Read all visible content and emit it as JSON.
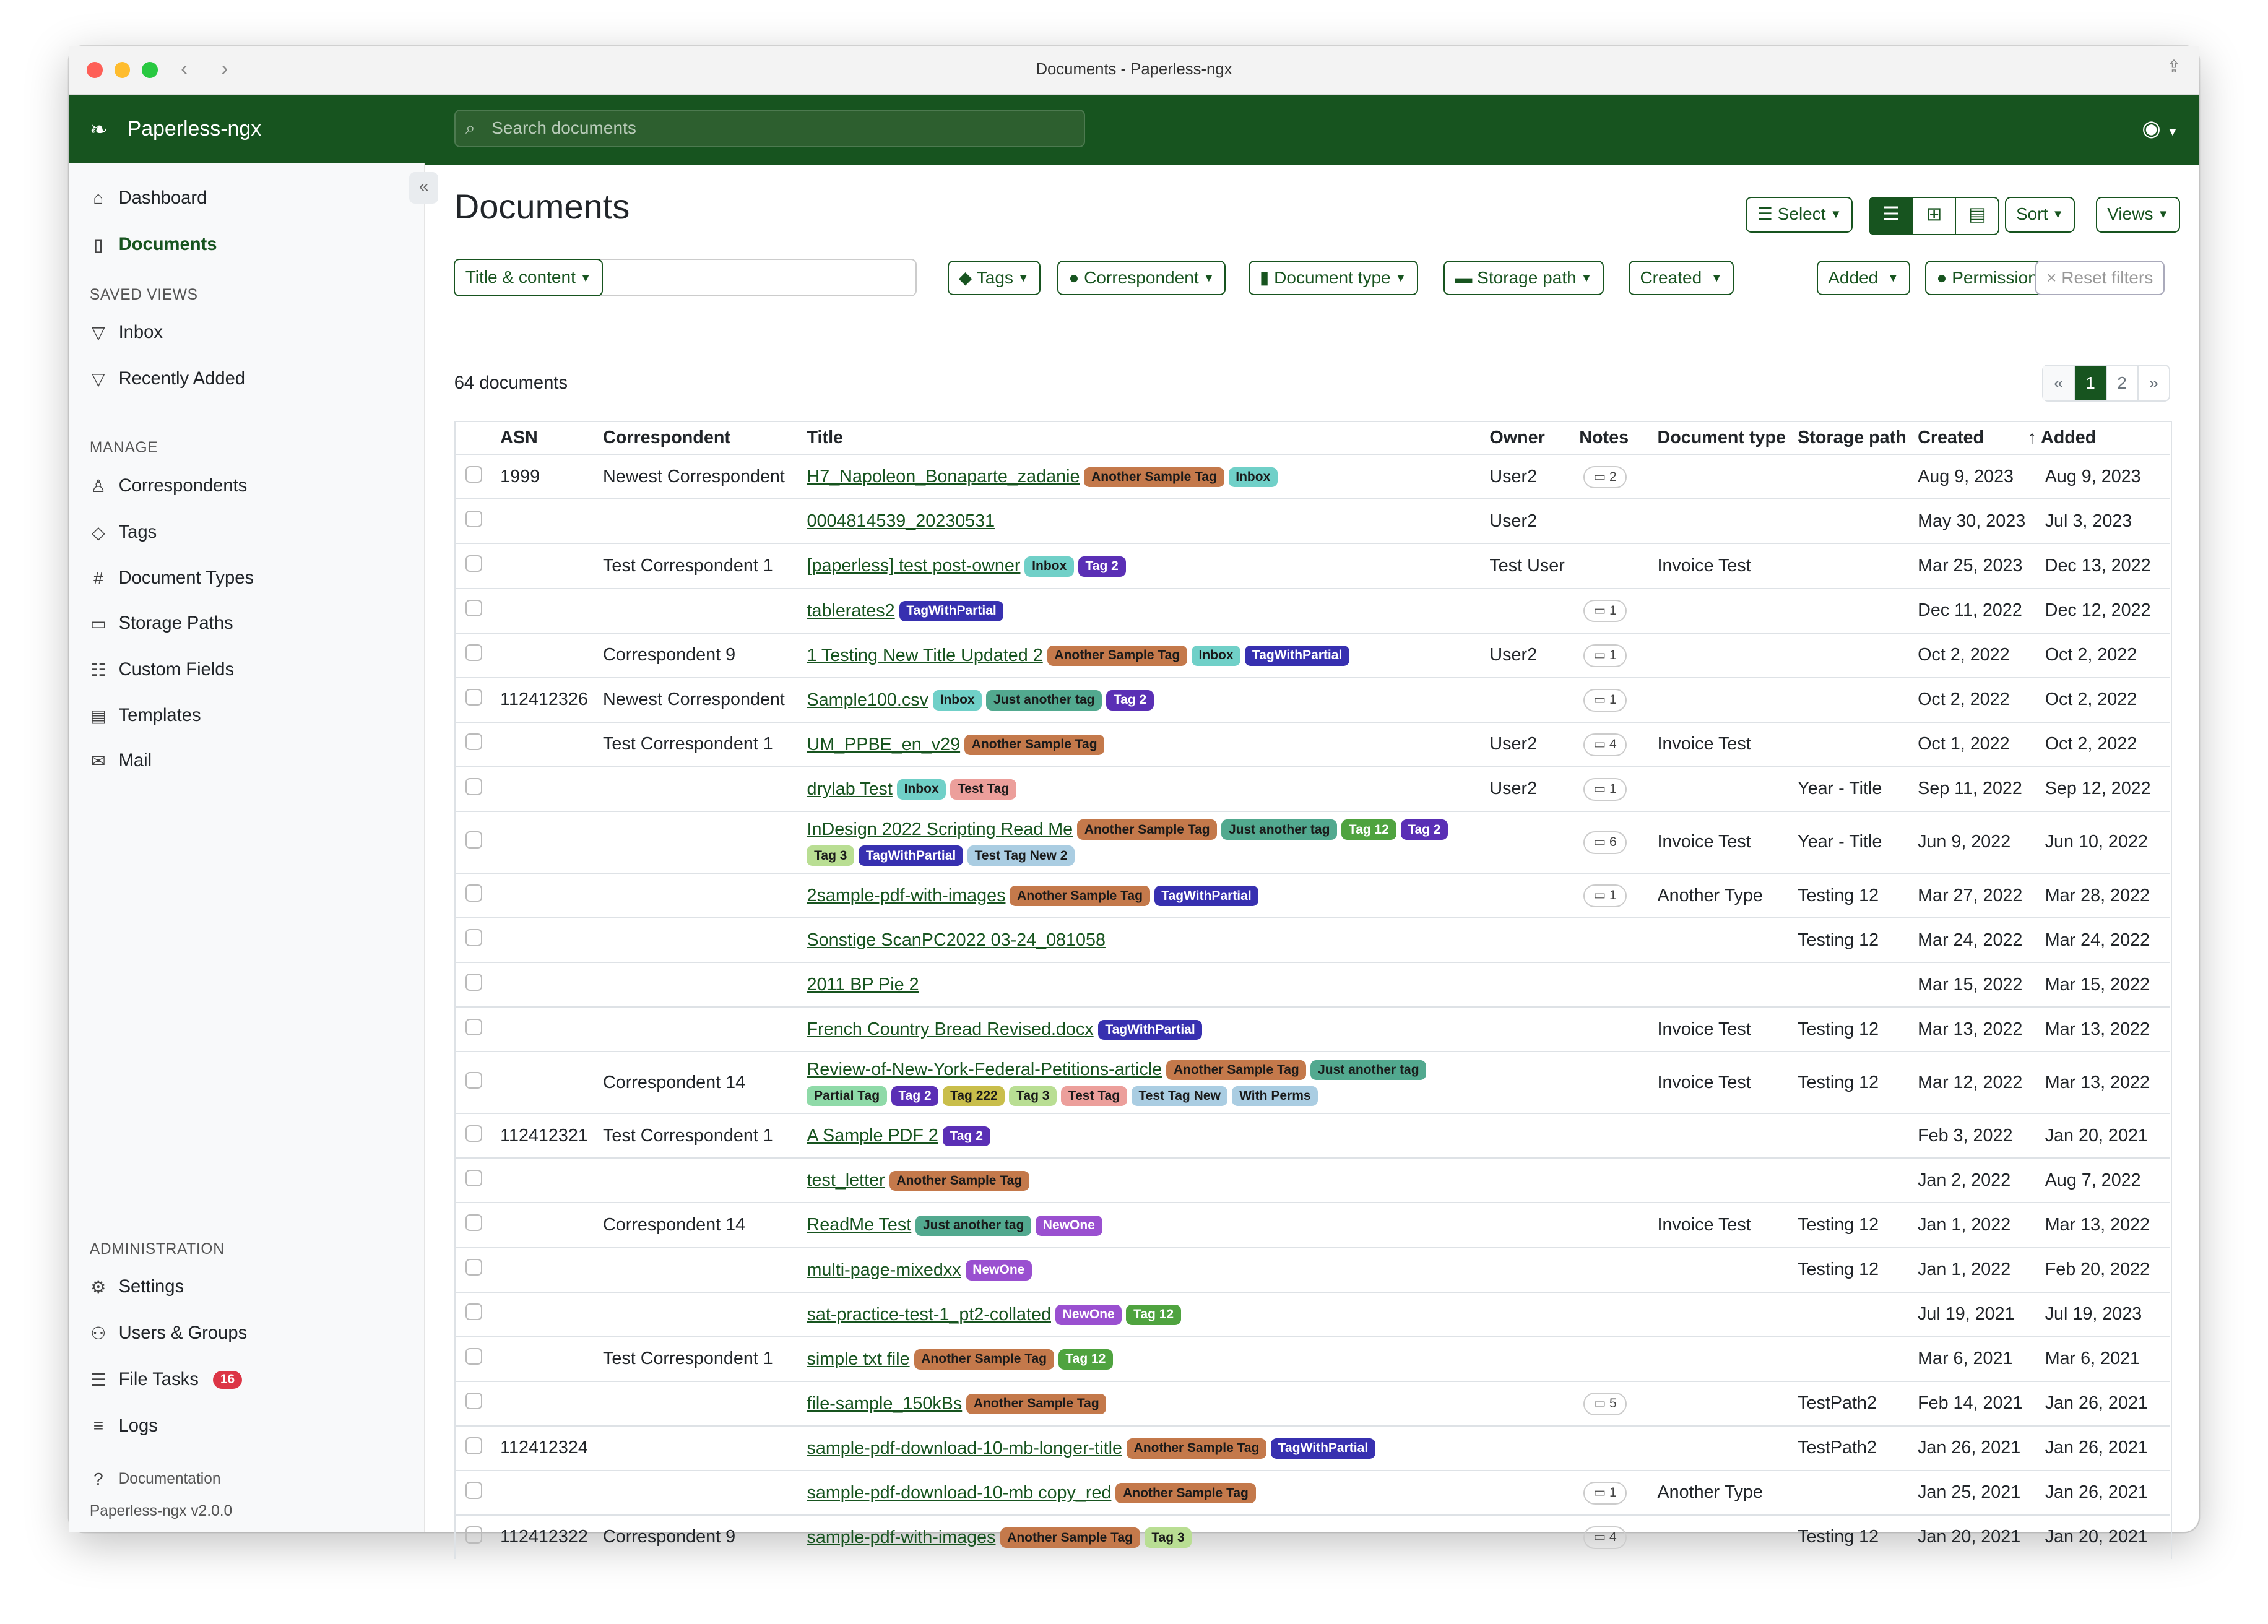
{
  "window": {
    "title": "Documents - Paperless-ngx"
  },
  "app": {
    "name": "Paperless-ngx",
    "search_placeholder": "Search documents"
  },
  "sidebar": {
    "items": [
      {
        "label": "Dashboard",
        "icon": "house-icon"
      },
      {
        "label": "Documents",
        "icon": "file-icon",
        "active": true
      }
    ],
    "saved_views_heading": "SAVED VIEWS",
    "saved_views": [
      {
        "label": "Inbox"
      },
      {
        "label": "Recently Added"
      }
    ],
    "manage_heading": "MANAGE",
    "manage": [
      {
        "label": "Correspondents",
        "icon": "person-icon"
      },
      {
        "label": "Tags",
        "icon": "tags-icon"
      },
      {
        "label": "Document Types",
        "icon": "hash-icon"
      },
      {
        "label": "Storage Paths",
        "icon": "folder-icon"
      },
      {
        "label": "Custom Fields",
        "icon": "ui-radios-icon"
      },
      {
        "label": "Templates",
        "icon": "file-text-icon"
      },
      {
        "label": "Mail",
        "icon": "envelope-icon"
      }
    ],
    "admin_heading": "ADMINISTRATION",
    "admin": [
      {
        "label": "Settings",
        "icon": "gear-icon"
      },
      {
        "label": "Users & Groups",
        "icon": "people-icon"
      },
      {
        "label": "File Tasks",
        "icon": "list-task-icon",
        "badge": "16"
      },
      {
        "label": "Logs",
        "icon": "text-left-icon"
      }
    ],
    "documentation": "Documentation",
    "version": "Paperless-ngx v2.0.0"
  },
  "main": {
    "title": "Documents",
    "select": "Select",
    "sort": "Sort",
    "views": "Views",
    "filters": {
      "title_content": "Title & content",
      "tags": "Tags",
      "correspondent": "Correspondent",
      "document_type": "Document type",
      "storage_path": "Storage path",
      "created": "Created",
      "added": "Added",
      "permissions": "Permissions",
      "reset": "Reset filters"
    },
    "count": "64 documents",
    "pager": {
      "prev": "«",
      "pages": [
        "1",
        "2"
      ],
      "current": "1",
      "next": "»"
    }
  },
  "accent": "#17541f",
  "tag_colors": {
    "Another Sample Tag": [
      "#c4794b",
      "#1a1a1a"
    ],
    "Inbox": [
      "#70d0c8",
      "#1a1a1a"
    ],
    "Tag 2": [
      "#5a2fb5",
      "#ffffff"
    ],
    "TagWithPartial": [
      "#3730b0",
      "#ffffff"
    ],
    "Just another tag": [
      "#52a98f",
      "#1a1a1a"
    ],
    "Tag 12": [
      "#4fa33f",
      "#ffffff"
    ],
    "Tag 3": [
      "#b9de93",
      "#1a1a1a"
    ],
    "Test Tag New 2": [
      "#aacde2",
      "#1a1a1a"
    ],
    "Test Tag": [
      "#ec9f9b",
      "#1a1a1a"
    ],
    "Partial Tag": [
      "#8fdaa8",
      "#1a1a1a"
    ],
    "Tag 222": [
      "#c9be4b",
      "#1a1a1a"
    ],
    "Test Tag New": [
      "#aacde2",
      "#1a1a1a"
    ],
    "With Perms": [
      "#aacde2",
      "#1a1a1a"
    ],
    "NewOne": [
      "#9a50d0",
      "#ffffff"
    ]
  },
  "documents": {
    "columns": [
      "ASN",
      "Correspondent",
      "Title",
      "Owner",
      "Notes",
      "Document type",
      "Storage path",
      "Created",
      "Added"
    ],
    "sort_column": "Added",
    "rows": [
      {
        "asn": "1999",
        "correspondent": "Newest Correspondent",
        "title": "H7_Napoleon_Bonaparte_zadanie",
        "tags": [
          "Another Sample Tag",
          "Inbox"
        ],
        "owner": "User2",
        "notes": "2",
        "doctype": "",
        "path": "",
        "created": "Aug 9, 2023",
        "added": "Aug 9, 2023"
      },
      {
        "asn": "",
        "correspondent": "",
        "title": "0004814539_20230531",
        "tags": [],
        "owner": "User2",
        "notes": "",
        "doctype": "",
        "path": "",
        "created": "May 30, 2023",
        "added": "Jul 3, 2023"
      },
      {
        "asn": "",
        "correspondent": "Test Correspondent 1",
        "title": "[paperless] test post-owner",
        "tags": [
          "Inbox",
          "Tag 2"
        ],
        "owner": "Test User",
        "notes": "",
        "doctype": "Invoice Test",
        "path": "",
        "created": "Mar 25, 2023",
        "added": "Dec 13, 2022"
      },
      {
        "asn": "",
        "correspondent": "",
        "title": "tablerates2",
        "tags": [
          "TagWithPartial"
        ],
        "owner": "",
        "notes": "1",
        "doctype": "",
        "path": "",
        "created": "Dec 11, 2022",
        "added": "Dec 12, 2022"
      },
      {
        "asn": "",
        "correspondent": "Correspondent 9",
        "title": "1 Testing New Title Updated 2",
        "tags": [
          "Another Sample Tag",
          "Inbox",
          "TagWithPartial"
        ],
        "owner": "User2",
        "notes": "1",
        "doctype": "",
        "path": "",
        "created": "Oct 2, 2022",
        "added": "Oct 2, 2022"
      },
      {
        "asn": "112412326",
        "correspondent": "Newest Correspondent",
        "title": "Sample100.csv",
        "tags": [
          "Inbox",
          "Just another tag",
          "Tag 2"
        ],
        "owner": "",
        "notes": "1",
        "doctype": "",
        "path": "",
        "created": "Oct 2, 2022",
        "added": "Oct 2, 2022"
      },
      {
        "asn": "",
        "correspondent": "Test Correspondent 1",
        "title": "UM_PPBE_en_v29",
        "tags": [
          "Another Sample Tag"
        ],
        "owner": "User2",
        "notes": "4",
        "doctype": "Invoice Test",
        "path": "",
        "created": "Oct 1, 2022",
        "added": "Oct 2, 2022"
      },
      {
        "asn": "",
        "correspondent": "",
        "title": "drylab Test",
        "tags": [
          "Inbox",
          "Test Tag"
        ],
        "owner": "User2",
        "notes": "1",
        "doctype": "",
        "path": "Year - Title",
        "created": "Sep 11, 2022",
        "added": "Sep 12, 2022"
      },
      {
        "asn": "",
        "correspondent": "",
        "title": "InDesign 2022 Scripting Read Me",
        "tags": [
          "Another Sample Tag",
          "Just another tag",
          "Tag 12",
          "Tag 2",
          "Tag 3",
          "TagWithPartial",
          "Test Tag New 2"
        ],
        "owner": "",
        "notes": "6",
        "doctype": "Invoice Test",
        "path": "Year - Title",
        "created": "Jun 9, 2022",
        "added": "Jun 10, 2022"
      },
      {
        "asn": "",
        "correspondent": "",
        "title": "2sample-pdf-with-images",
        "tags": [
          "Another Sample Tag",
          "TagWithPartial"
        ],
        "owner": "",
        "notes": "1",
        "doctype": "Another Type",
        "path": "Testing 12",
        "created": "Mar 27, 2022",
        "added": "Mar 28, 2022"
      },
      {
        "asn": "",
        "correspondent": "",
        "title": "Sonstige ScanPC2022 03-24_081058",
        "tags": [],
        "owner": "",
        "notes": "",
        "doctype": "",
        "path": "Testing 12",
        "created": "Mar 24, 2022",
        "added": "Mar 24, 2022"
      },
      {
        "asn": "",
        "correspondent": "",
        "title": "2011 BP Pie 2",
        "tags": [],
        "owner": "",
        "notes": "",
        "doctype": "",
        "path": "",
        "created": "Mar 15, 2022",
        "added": "Mar 15, 2022"
      },
      {
        "asn": "",
        "correspondent": "",
        "title": "French Country Bread Revised.docx",
        "tags": [
          "TagWithPartial"
        ],
        "owner": "",
        "notes": "",
        "doctype": "Invoice Test",
        "path": "Testing 12",
        "created": "Mar 13, 2022",
        "added": "Mar 13, 2022"
      },
      {
        "asn": "",
        "correspondent": "Correspondent 14",
        "title": "Review-of-New-York-Federal-Petitions-article",
        "tags": [
          "Another Sample Tag",
          "Just another tag",
          "Partial Tag",
          "Tag 2",
          "Tag 222",
          "Tag 3",
          "Test Tag",
          "Test Tag New",
          "With Perms"
        ],
        "owner": "",
        "notes": "",
        "doctype": "Invoice Test",
        "path": "Testing 12",
        "created": "Mar 12, 2022",
        "added": "Mar 13, 2022"
      },
      {
        "asn": "112412321",
        "correspondent": "Test Correspondent 1",
        "title": "A Sample PDF 2",
        "tags": [
          "Tag 2"
        ],
        "owner": "",
        "notes": "",
        "doctype": "",
        "path": "",
        "created": "Feb 3, 2022",
        "added": "Jan 20, 2021"
      },
      {
        "asn": "",
        "correspondent": "",
        "title": "test_letter",
        "tags": [
          "Another Sample Tag"
        ],
        "owner": "",
        "notes": "",
        "doctype": "",
        "path": "",
        "created": "Jan 2, 2022",
        "added": "Aug 7, 2022"
      },
      {
        "asn": "",
        "correspondent": "Correspondent 14",
        "title": "ReadMe Test",
        "tags": [
          "Just another tag",
          "NewOne"
        ],
        "owner": "",
        "notes": "",
        "doctype": "Invoice Test",
        "path": "Testing 12",
        "created": "Jan 1, 2022",
        "added": "Mar 13, 2022"
      },
      {
        "asn": "",
        "correspondent": "",
        "title": "multi-page-mixedxx",
        "tags": [
          "NewOne"
        ],
        "owner": "",
        "notes": "",
        "doctype": "",
        "path": "Testing 12",
        "created": "Jan 1, 2022",
        "added": "Feb 20, 2022"
      },
      {
        "asn": "",
        "correspondent": "",
        "title": "sat-practice-test-1_pt2-collated",
        "tags": [
          "NewOne",
          "Tag 12"
        ],
        "owner": "",
        "notes": "",
        "doctype": "",
        "path": "",
        "created": "Jul 19, 2021",
        "added": "Jul 19, 2023"
      },
      {
        "asn": "",
        "correspondent": "Test Correspondent 1",
        "title": "simple txt file",
        "tags": [
          "Another Sample Tag",
          "Tag 12"
        ],
        "owner": "",
        "notes": "",
        "doctype": "",
        "path": "",
        "created": "Mar 6, 2021",
        "added": "Mar 6, 2021"
      },
      {
        "asn": "",
        "correspondent": "",
        "title": "file-sample_150kBs",
        "tags": [
          "Another Sample Tag"
        ],
        "owner": "",
        "notes": "5",
        "doctype": "",
        "path": "TestPath2",
        "created": "Feb 14, 2021",
        "added": "Jan 26, 2021"
      },
      {
        "asn": "112412324",
        "correspondent": "",
        "title": "sample-pdf-download-10-mb-longer-title",
        "tags": [
          "Another Sample Tag",
          "TagWithPartial"
        ],
        "owner": "",
        "notes": "",
        "doctype": "",
        "path": "TestPath2",
        "created": "Jan 26, 2021",
        "added": "Jan 26, 2021"
      },
      {
        "asn": "",
        "correspondent": "",
        "title": "sample-pdf-download-10-mb copy_red",
        "tags": [
          "Another Sample Tag"
        ],
        "owner": "",
        "notes": "1",
        "doctype": "Another Type",
        "path": "",
        "created": "Jan 25, 2021",
        "added": "Jan 26, 2021"
      },
      {
        "asn": "112412322",
        "correspondent": "Correspondent 9",
        "title": "sample-pdf-with-images",
        "tags": [
          "Another Sample Tag",
          "Tag 3"
        ],
        "owner": "",
        "notes": "4",
        "doctype": "",
        "path": "Testing 12",
        "created": "Jan 20, 2021",
        "added": "Jan 20, 2021"
      }
    ]
  }
}
